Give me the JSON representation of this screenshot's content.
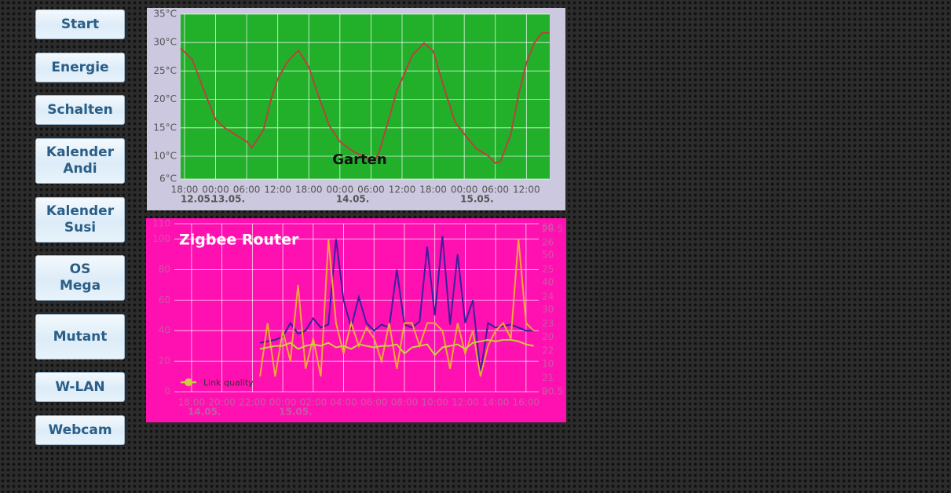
{
  "nav": [
    "Start",
    "Energie",
    "Schalten",
    "Kalender\nAndi",
    "Kalender\nSusi",
    "OS\nMega",
    "Mutant",
    "W-LAN",
    "Webcam"
  ],
  "chart_data": [
    {
      "type": "line",
      "title": "Garten",
      "x": [
        "12.05. 17:15",
        "12.05. 19:30",
        "12.05. 21:45",
        "13.05. 00:00",
        "13.05. 01:45",
        "13.05. 04:00",
        "13.05. 06:00",
        "13.05. 07:00",
        "13.05. 09:15",
        "13.05. 10:45",
        "13.05. 12:00",
        "13.05. 13:45",
        "13.05. 15:15",
        "13.05. 16:00",
        "13.05. 18:00",
        "13.05. 19:45",
        "13.05. 22:00",
        "14.05. 00:00",
        "14.05. 02:00",
        "14.05. 03:30",
        "14.05. 05:00",
        "14.05. 06:30",
        "14.05. 07:30",
        "14.05. 09:30",
        "14.05. 11:00",
        "14.05. 12:00",
        "14.05. 14:00",
        "14.05. 16:15",
        "14.05. 18:00",
        "14.05. 20:00",
        "14.05. 22:15",
        "15.05. 00:00",
        "15.05. 02:15",
        "15.05. 04:45",
        "15.05. 06:00",
        "15.05. 07:00",
        "15.05. 09:00",
        "15.05. 10:30",
        "15.05. 12:00",
        "15.05. 13:30",
        "15.05. 15:00",
        "15.05. 16:30"
      ],
      "series": [
        {
          "color": "#b5443c",
          "values": [
            29,
            27,
            21.6,
            16.5,
            15,
            13.7,
            12.6,
            11.5,
            14.6,
            20.2,
            23.6,
            26.5,
            28,
            28.6,
            25.7,
            20.9,
            15.3,
            12.6,
            11.2,
            10.4,
            9.8,
            9.1,
            10.5,
            16.7,
            21.6,
            23.6,
            27.8,
            29.9,
            28.5,
            22.3,
            16,
            13.9,
            11.4,
            10,
            8.8,
            9.1,
            13.9,
            20.9,
            26.4,
            29.9,
            31.7,
            31.7
          ]
        }
      ],
      "xlim": [
        "12.05. 17:15",
        "15.05. 16:30"
      ],
      "xticks": [
        {
          "value": "12.05. 18:00",
          "label": "18:00"
        },
        {
          "value": "13.05. 00:00",
          "label": "00:00"
        },
        {
          "value": "13.05. 06:00",
          "label": "06:00"
        },
        {
          "value": "13.05. 12:00",
          "label": "12:00"
        },
        {
          "value": "13.05. 18:00",
          "label": "18:00"
        },
        {
          "value": "14.05. 00:00",
          "label": "00:00"
        },
        {
          "value": "14.05. 06:00",
          "label": "06:00"
        },
        {
          "value": "14.05. 12:00",
          "label": "12:00"
        },
        {
          "value": "14.05. 18:00",
          "label": "18:00"
        },
        {
          "value": "15.05. 00:00",
          "label": "00:00"
        },
        {
          "value": "15.05. 06:00",
          "label": "06:00"
        },
        {
          "value": "15.05. 12:00",
          "label": "12:00"
        }
      ],
      "xdate_labels": [
        {
          "value": "12.05. 18:00",
          "label": "12.05."
        },
        {
          "value": "13.05. 00:00",
          "label": "13.05."
        },
        {
          "value": "14.05. 00:00",
          "label": "14.05."
        },
        {
          "value": "15.05. 00:00",
          "label": "15.05."
        }
      ],
      "ylim": [
        6,
        35
      ],
      "yticks": [
        {
          "value": 6,
          "label": "6°C"
        },
        {
          "value": 10,
          "label": "10°C"
        },
        {
          "value": 15,
          "label": "15°C"
        },
        {
          "value": 20,
          "label": "20°C"
        },
        {
          "value": 25,
          "label": "25°C"
        },
        {
          "value": 30,
          "label": "30°C"
        },
        {
          "value": 35,
          "label": "35°C"
        }
      ],
      "grid": true
    },
    {
      "type": "line",
      "title": "Zigbee Router",
      "x": [
        "14.05. 22:30",
        "14.05. 23:00",
        "14.05. 23:30",
        "15.05. 00:00",
        "15.05. 00:30",
        "15.05. 01:00",
        "15.05. 01:30",
        "15.05. 02:00",
        "15.05. 02:30",
        "15.05. 03:00",
        "15.05. 03:30",
        "15.05. 04:00",
        "15.05. 04:30",
        "15.05. 05:00",
        "15.05. 05:30",
        "15.05. 06:00",
        "15.05. 06:30",
        "15.05. 07:00",
        "15.05. 07:30",
        "15.05. 08:00",
        "15.05. 08:30",
        "15.05. 09:00",
        "15.05. 09:30",
        "15.05. 10:00",
        "15.05. 10:30",
        "15.05. 11:00",
        "15.05. 11:30",
        "15.05. 12:00",
        "15.05. 12:30",
        "15.05. 13:00",
        "15.05. 13:30",
        "15.05. 14:00",
        "15.05. 14:30",
        "15.05. 15:00",
        "15.05. 15:30",
        "15.05. 16:00",
        "15.05. 16:30"
      ],
      "series": [
        {
          "color": "#3a1fa0",
          "values": [
            32,
            33,
            34,
            36,
            45,
            38,
            40,
            48,
            42,
            44,
            100,
            60,
            42,
            62,
            45,
            40,
            44,
            42,
            80,
            44,
            42,
            46,
            95,
            50,
            102,
            44,
            90,
            45,
            60,
            12,
            45,
            42,
            43,
            44,
            42,
            40,
            40
          ]
        },
        {
          "color": "#f0a838",
          "values": [
            10,
            45,
            10,
            40,
            20,
            70,
            15,
            35,
            10,
            100,
            45,
            25,
            45,
            30,
            42,
            35,
            20,
            45,
            15,
            45,
            45,
            30,
            45,
            45,
            40,
            15,
            45,
            25,
            40,
            10,
            30,
            40,
            45,
            35,
            100,
            45,
            40
          ]
        },
        {
          "name": "Link quality",
          "color": "#c8d040",
          "values": [
            28,
            29,
            30,
            30,
            32,
            28,
            30,
            31,
            30,
            32,
            29,
            30,
            28,
            31,
            30,
            29,
            30,
            30,
            31,
            25,
            29,
            30,
            31,
            24,
            29,
            30,
            31,
            28,
            32,
            33,
            34,
            33,
            34,
            34,
            33,
            31,
            30
          ]
        }
      ],
      "legend": "lower left",
      "xlim": [
        "14.05. 16:52",
        "15.05. 16:50"
      ],
      "xticks": [
        {
          "value": "14.05. 18:00",
          "label": "18:00"
        },
        {
          "value": "14.05. 20:00",
          "label": "20:00"
        },
        {
          "value": "14.05. 22:00",
          "label": "22:00"
        },
        {
          "value": "15.05. 00:00",
          "label": "00:00"
        },
        {
          "value": "15.05. 02:00",
          "label": "02:00"
        },
        {
          "value": "15.05. 04:00",
          "label": "04:00"
        },
        {
          "value": "15.05. 06:00",
          "label": "06:00"
        },
        {
          "value": "15.05. 08:00",
          "label": "08:00"
        },
        {
          "value": "15.05. 10:00",
          "label": "10:00"
        },
        {
          "value": "15.05. 12:00",
          "label": "12:00"
        },
        {
          "value": "15.05. 14:00",
          "label": "14:00"
        },
        {
          "value": "15.05. 16:00",
          "label": "16:00"
        }
      ],
      "xdate_labels": [
        {
          "value": "14.05. 18:00",
          "label": "14.05."
        },
        {
          "value": "15.05. 00:00",
          "label": "15.05."
        }
      ],
      "ylim": [
        0,
        110
      ],
      "yticks": [
        0,
        20,
        40,
        60,
        80,
        100,
        110
      ],
      "y2lim": [
        0,
        61.5
      ],
      "y2ticks": [
        0,
        10,
        20,
        30,
        40,
        50,
        60
      ],
      "y3lim": [
        20.5,
        26.7
      ],
      "y3ticks": [
        20.5,
        21,
        22,
        23,
        24,
        25,
        26,
        26.5
      ],
      "grid": true
    }
  ]
}
